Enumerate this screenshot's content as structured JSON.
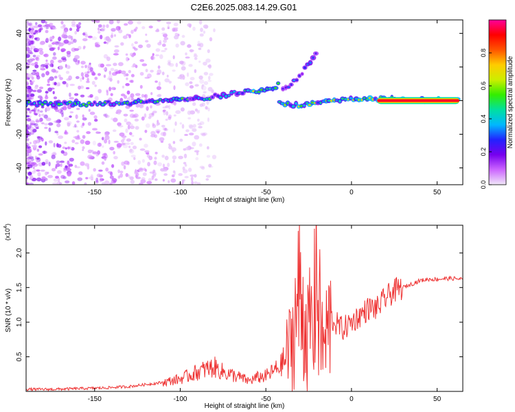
{
  "title": "C2E6.2025.083.14.29.G01",
  "chart_data": [
    {
      "type": "heatmap",
      "xlabel": "Height of straight line (km)",
      "ylabel": "Frequency (Hz)",
      "xlim": [
        -190,
        65
      ],
      "ylim": [
        -50,
        48
      ],
      "xticks": [
        -150,
        -100,
        -50,
        0,
        50
      ],
      "yticks": [
        -40,
        -20,
        0,
        20,
        40
      ],
      "xtick_labels": [
        "-150",
        "-100",
        "-50",
        "0",
        "50"
      ],
      "ytick_labels": [
        "-40",
        "-20",
        "0",
        "20",
        "40"
      ],
      "colorbar": {
        "label": "Normalized spectral amplitude",
        "range": [
          0,
          1
        ],
        "ticks": [
          0.0,
          0.2,
          0.4,
          0.6,
          0.8
        ],
        "tick_labels": [
          "0.0",
          "0.2",
          "0.4",
          "0.6",
          "0.8"
        ],
        "colors": [
          "#f0e8f8",
          "#cc66ff",
          "#7700ee",
          "#2222ff",
          "#00b8ff",
          "#00e0a0",
          "#33ee00",
          "#ccee00",
          "#ffcc00",
          "#ff5500",
          "#ff0000",
          "#ff0099"
        ]
      },
      "traces": [
        {
          "x": [
            -190,
            -160,
            -132,
            -110,
            -90,
            -70,
            -55,
            -45,
            -42
          ],
          "y": [
            -2,
            -2,
            -1.5,
            0,
            1,
            4,
            6,
            8,
            10
          ],
          "level": 0.4
        },
        {
          "x": [
            -40,
            -35,
            -30,
            -25,
            -20
          ],
          "y": [
            6,
            10,
            15,
            22,
            30
          ],
          "level": 0.25
        },
        {
          "x": [
            -42,
            -35,
            -25,
            -15,
            0,
            15,
            63
          ],
          "y": [
            -1,
            -3,
            -2,
            0,
            1,
            1,
            0
          ],
          "level": 0.5
        },
        {
          "x": [
            15,
            63
          ],
          "y": [
            0,
            0
          ],
          "level": 0.95
        }
      ]
    },
    {
      "type": "line",
      "xlabel": "Height of straight line (km)",
      "ylabel": "SNR (10 * v/v)",
      "y_multiplier": "(x10",
      "y_multiplier_exp": "4",
      "y_multiplier_close": ")",
      "xlim": [
        -190,
        65
      ],
      "ylim": [
        0,
        2.4
      ],
      "xticks": [
        -150,
        -100,
        -50,
        0,
        50
      ],
      "yticks": [
        0.5,
        1.0,
        1.5,
        2.0
      ],
      "xtick_labels": [
        "-150",
        "-100",
        "-50",
        "0",
        "50"
      ],
      "ytick_labels": [
        "0.5",
        "1.0",
        "1.5",
        "2.0"
      ],
      "series": [
        {
          "color": "#ee3333",
          "x": [
            -190,
            -175,
            -160,
            -145,
            -130,
            -120,
            -110,
            -100,
            -90,
            -85,
            -80,
            -75,
            -70,
            -65,
            -60,
            -55,
            -50,
            -45,
            -40,
            -35,
            -32,
            -30,
            -28,
            -25,
            -22,
            -20,
            -18,
            -16,
            -14,
            -12,
            -10,
            -5,
            0,
            5,
            10,
            15,
            20,
            25,
            30,
            35,
            40,
            45,
            50,
            55,
            60,
            65
          ],
          "y": [
            0.03,
            0.03,
            0.04,
            0.05,
            0.07,
            0.1,
            0.13,
            0.18,
            0.28,
            0.32,
            0.35,
            0.28,
            0.24,
            0.2,
            0.15,
            0.2,
            0.22,
            0.3,
            0.4,
            0.7,
            1.2,
            1.4,
            1.1,
            0.8,
            1.3,
            1.5,
            0.9,
            0.6,
            0.9,
            1.05,
            1.0,
            0.9,
            1.0,
            1.1,
            1.2,
            1.2,
            1.35,
            1.45,
            1.5,
            1.55,
            1.6,
            1.62,
            1.62,
            1.63,
            1.63,
            1.62
          ]
        }
      ]
    }
  ]
}
